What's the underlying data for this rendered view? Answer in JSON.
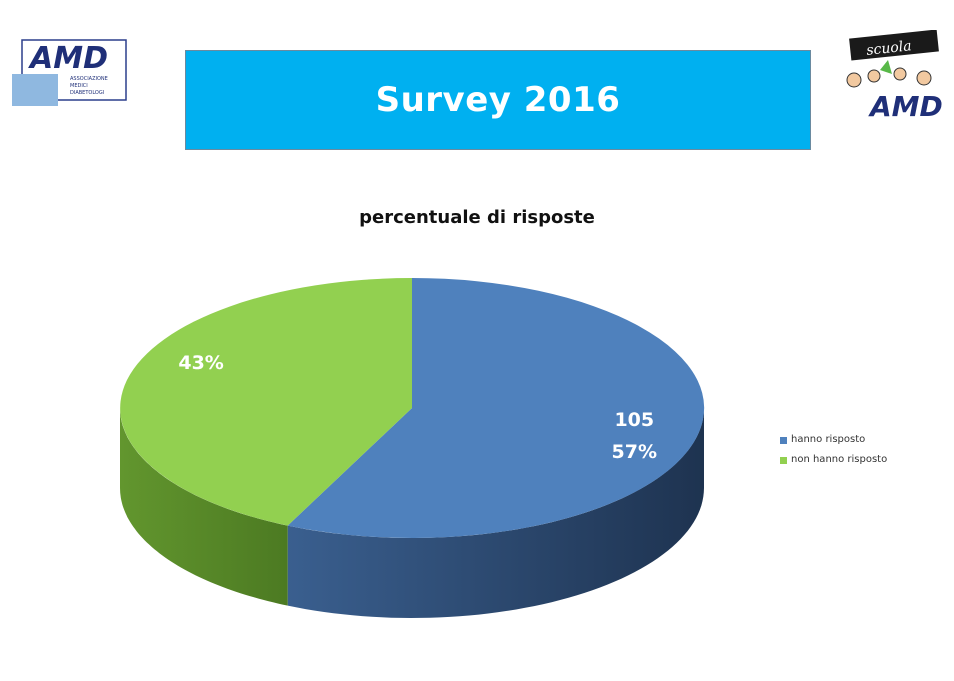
{
  "banner": {
    "title": "Survey 2016",
    "color": "#00b0f0"
  },
  "logos": {
    "left": {
      "text": "AMD",
      "subtext": [
        "ASSOCIAZIONE",
        "MEDICI",
        "DIABETOLOGI"
      ]
    },
    "right": {
      "text": "AMD",
      "script_text": "scuola"
    }
  },
  "chart_data": {
    "type": "pie",
    "title": "percentuale di risposte",
    "slices": [
      {
        "name": "hanno risposto",
        "value": 57,
        "count_label": "105",
        "percent_label": "57%",
        "color": "#4f81bd"
      },
      {
        "name": "non hanno risposto",
        "value": 43,
        "count_label": "",
        "percent_label": "43%",
        "color": "#92d050"
      }
    ],
    "legend_position": "right",
    "style": "3d"
  }
}
